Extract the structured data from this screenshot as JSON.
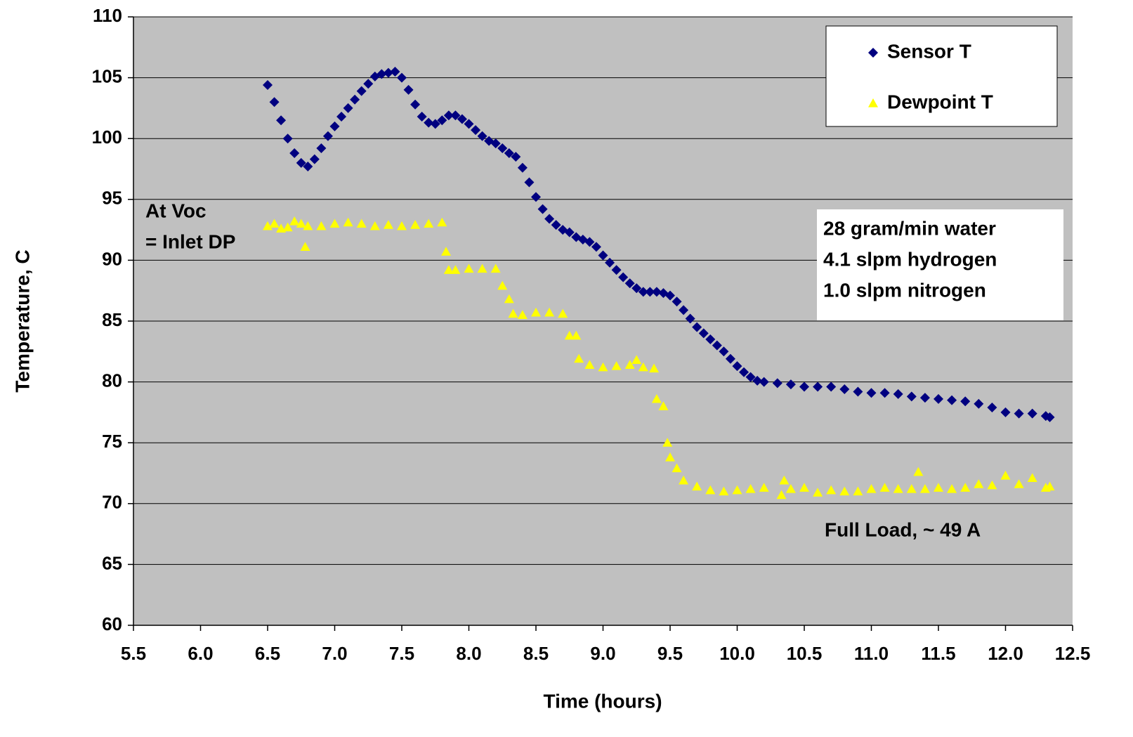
{
  "chart_data": {
    "type": "scatter",
    "xlabel": "Time (hours)",
    "ylabel": "Temperature, C",
    "xlim": [
      5.5,
      12.5
    ],
    "ylim": [
      60,
      110
    ],
    "xticks": [
      5.5,
      {
        "value": 6,
        "label": "6.0"
      },
      6.5,
      {
        "value": 7,
        "label": "7.0"
      },
      7.5,
      {
        "value": 8,
        "label": "8.0"
      },
      8.5,
      {
        "value": 9,
        "label": "9.0"
      },
      9.5,
      {
        "value": 10,
        "label": "10.0"
      },
      10.5,
      {
        "value": 11,
        "label": "11.0"
      },
      11.5,
      {
        "value": 12,
        "label": "12.0"
      },
      12.5
    ],
    "yticks": [
      60,
      65,
      70,
      75,
      80,
      85,
      90,
      95,
      100,
      105,
      110
    ],
    "grid": true,
    "legend": "upper right",
    "series": [
      {
        "name": "Sensor T",
        "color": "#000080",
        "marker": "diamond",
        "x": [
          6.5,
          6.55,
          6.6,
          6.65,
          6.7,
          6.75,
          6.8,
          6.85,
          6.9,
          6.95,
          7.0,
          7.05,
          7.1,
          7.15,
          7.2,
          7.25,
          7.3,
          7.35,
          7.4,
          7.45,
          7.5,
          7.55,
          7.6,
          7.65,
          7.7,
          7.75,
          7.8,
          7.85,
          7.9,
          7.95,
          8.0,
          8.05,
          8.1,
          8.15,
          8.2,
          8.25,
          8.3,
          8.35,
          8.4,
          8.45,
          8.5,
          8.55,
          8.6,
          8.65,
          8.7,
          8.75,
          8.8,
          8.85,
          8.9,
          8.95,
          9.0,
          9.05,
          9.1,
          9.15,
          9.2,
          9.25,
          9.3,
          9.35,
          9.4,
          9.45,
          9.5,
          9.55,
          9.6,
          9.65,
          9.7,
          9.75,
          9.8,
          9.85,
          9.9,
          9.95,
          10.0,
          10.05,
          10.1,
          10.15,
          10.2,
          10.3,
          10.4,
          10.5,
          10.6,
          10.7,
          10.8,
          10.9,
          11.0,
          11.1,
          11.2,
          11.3,
          11.4,
          11.5,
          11.6,
          11.7,
          11.8,
          11.9,
          12.0,
          12.1,
          12.2,
          12.3,
          12.33
        ],
        "values": [
          104.4,
          103,
          101.5,
          100,
          98.8,
          98,
          97.7,
          98.3,
          99.2,
          100.2,
          101,
          101.8,
          102.5,
          103.2,
          103.9,
          104.5,
          105.1,
          105.3,
          105.4,
          105.5,
          105,
          104,
          102.8,
          101.8,
          101.3,
          101.2,
          101.5,
          101.9,
          101.9,
          101.6,
          101.2,
          100.7,
          100.2,
          99.8,
          99.6,
          99.2,
          98.8,
          98.5,
          97.6,
          96.4,
          95.2,
          94.2,
          93.4,
          92.9,
          92.5,
          92.3,
          91.9,
          91.7,
          91.5,
          91.1,
          90.4,
          89.8,
          89.2,
          88.6,
          88.1,
          87.7,
          87.4,
          87.4,
          87.4,
          87.3,
          87.1,
          86.6,
          85.9,
          85.2,
          84.5,
          84,
          83.5,
          83,
          82.5,
          81.9,
          81.3,
          80.8,
          80.4,
          80.1,
          80,
          79.9,
          79.8,
          79.6,
          79.6,
          79.6,
          79.4,
          79.2,
          79.1,
          79.1,
          79,
          78.8,
          78.7,
          78.6,
          78.5,
          78.4,
          78.2,
          77.9,
          77.5,
          77.4,
          77.4,
          77.2,
          77.1
        ]
      },
      {
        "name": "Dewpoint T",
        "color": "#ffff00",
        "marker": "triangle",
        "x": [
          6.5,
          6.55,
          6.6,
          6.65,
          6.7,
          6.75,
          6.78,
          6.8,
          6.9,
          7.0,
          7.1,
          7.2,
          7.3,
          7.4,
          7.5,
          7.6,
          7.7,
          7.8,
          7.83,
          7.85,
          7.9,
          8.0,
          8.1,
          8.2,
          8.25,
          8.3,
          8.33,
          8.4,
          8.5,
          8.6,
          8.7,
          8.75,
          8.8,
          8.82,
          8.9,
          9.0,
          9.1,
          9.2,
          9.25,
          9.3,
          9.38,
          9.4,
          9.45,
          9.48,
          9.5,
          9.55,
          9.6,
          9.7,
          9.8,
          9.9,
          10.0,
          10.1,
          10.2,
          10.33,
          10.35,
          10.4,
          10.5,
          10.6,
          10.7,
          10.8,
          10.9,
          11.0,
          11.1,
          11.2,
          11.3,
          11.35,
          11.4,
          11.5,
          11.6,
          11.7,
          11.8,
          11.9,
          12.0,
          12.1,
          12.2,
          12.3,
          12.33
        ],
        "values": [
          92.8,
          93,
          92.6,
          92.7,
          93.2,
          93,
          91.1,
          92.8,
          92.8,
          93,
          93.1,
          93,
          92.8,
          92.9,
          92.8,
          92.9,
          93,
          93.1,
          90.7,
          89.2,
          89.2,
          89.3,
          89.3,
          89.3,
          87.9,
          86.8,
          85.6,
          85.5,
          85.7,
          85.7,
          85.6,
          83.8,
          83.8,
          81.9,
          81.4,
          81.2,
          81.3,
          81.4,
          81.8,
          81.2,
          81.1,
          78.6,
          78,
          75,
          73.8,
          72.9,
          71.9,
          71.4,
          71.1,
          71,
          71.1,
          71.2,
          71.3,
          70.7,
          71.9,
          71.2,
          71.3,
          70.9,
          71.1,
          71,
          71,
          71.2,
          71.3,
          71.2,
          71.2,
          72.6,
          71.2,
          71.3,
          71.2,
          71.3,
          71.6,
          71.5,
          72.3,
          71.6,
          72.1,
          71.3,
          71.4
        ]
      }
    ],
    "annotations": [
      "At Voc",
      "= Inlet DP",
      "28 gram/min water",
      "4.1 slpm hydrogen",
      "1.0 slpm nitrogen",
      "Full Load, ~ 49 A"
    ]
  }
}
